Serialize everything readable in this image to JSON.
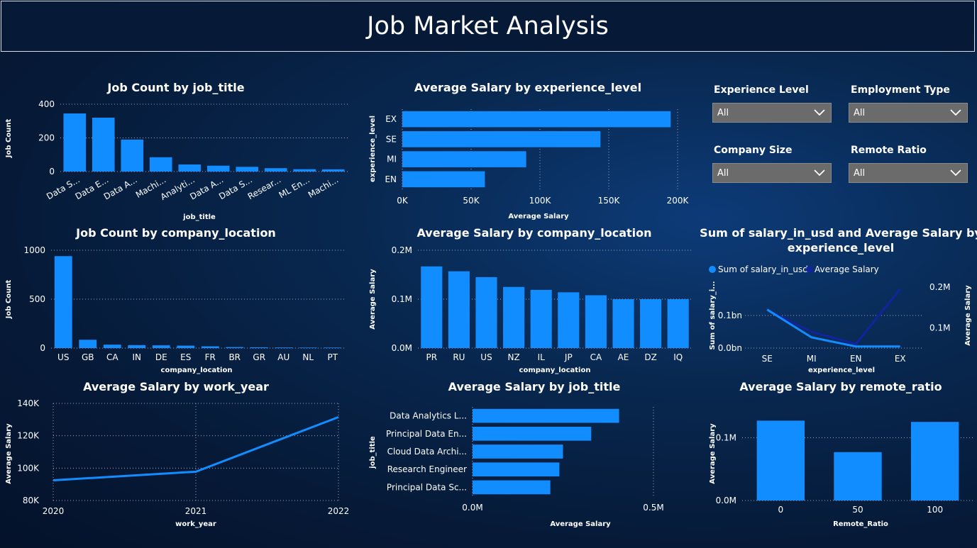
{
  "header": {
    "title": "Job Market Analysis"
  },
  "colors": {
    "bar": "#118dff",
    "line_avg": "#12239e",
    "line_sum": "#118dff",
    "background": "#061a38"
  },
  "filters": [
    {
      "label": "Experience Level",
      "value": "All"
    },
    {
      "label": "Employment Type",
      "value": "All"
    },
    {
      "label": "Company Size",
      "value": "All"
    },
    {
      "label": "Remote Ratio",
      "value": "All"
    }
  ],
  "chart_data": [
    {
      "id": "job_count_by_title",
      "type": "bar",
      "title": "Job Count by job_title",
      "xlabel": "job_title",
      "ylabel": "Job Count",
      "categories": [
        "Data S...",
        "Data E...",
        "Data A...",
        "Machi...",
        "Analyti...",
        "Data A...",
        "Data S...",
        "Resear...",
        "ML En...",
        "Machi..."
      ],
      "values": [
        345,
        320,
        190,
        85,
        42,
        35,
        28,
        20,
        14,
        13
      ],
      "ylim": [
        0,
        400
      ],
      "yticks": [
        0,
        200,
        400
      ],
      "ytick_labels": [
        "0",
        "200",
        "400"
      ]
    },
    {
      "id": "avg_salary_by_experience",
      "type": "bar",
      "orientation": "horizontal",
      "title": "Average Salary by experience_level",
      "xlabel": "Average Salary",
      "ylabel": "experience_level",
      "categories": [
        "EX",
        "SE",
        "MI",
        "EN"
      ],
      "values": [
        195000,
        144000,
        90000,
        60000
      ],
      "xlim": [
        0,
        200000
      ],
      "xticks": [
        0,
        50000,
        100000,
        150000,
        200000
      ],
      "xtick_labels": [
        "0K",
        "50K",
        "100K",
        "150K",
        "200K"
      ]
    },
    {
      "id": "job_count_by_location",
      "type": "bar",
      "title": "Job Count by company_location",
      "xlabel": "company_location",
      "ylabel": "Job Count",
      "categories": [
        "US",
        "GB",
        "CA",
        "IN",
        "DE",
        "ES",
        "FR",
        "BR",
        "GR",
        "AU",
        "NL",
        "PT"
      ],
      "values": [
        940,
        85,
        35,
        30,
        28,
        25,
        18,
        10,
        8,
        6,
        5,
        5
      ],
      "ylim": [
        0,
        1000
      ],
      "yticks": [
        0,
        500,
        1000
      ],
      "ytick_labels": [
        "0",
        "500",
        "1000"
      ]
    },
    {
      "id": "avg_salary_by_location",
      "type": "bar",
      "title": "Average Salary by company_location",
      "xlabel": "company_location",
      "ylabel": "Average Salary",
      "categories": [
        "PR",
        "RU",
        "US",
        "NZ",
        "IL",
        "JP",
        "CA",
        "AE",
        "DZ",
        "IQ"
      ],
      "values": [
        167000,
        157000,
        145000,
        125000,
        119000,
        114000,
        108000,
        100000,
        100000,
        100000
      ],
      "ylim": [
        0,
        200000
      ],
      "yticks": [
        0,
        100000,
        200000
      ],
      "ytick_labels": [
        "0.0M",
        "0.1M",
        "0.2M"
      ]
    },
    {
      "id": "sum_and_avg_by_experience",
      "type": "line",
      "title": "Sum of salary_in_usd and Average Salary by experience_level",
      "title_lines": [
        "Sum of salary_in_usd and Average Salary by",
        "experience_level"
      ],
      "xlabel": "experience_level",
      "ylabel": "Sum of salary_i...",
      "y2label": "Average Salary",
      "categories": [
        "SE",
        "MI",
        "EN",
        "EX"
      ],
      "series": [
        {
          "name": "Sum of salary_in_usd",
          "axis": "left",
          "values": [
            118000000,
            33000000,
            5000000,
            5000000
          ]
        },
        {
          "name": "Average Salary",
          "axis": "right",
          "values": [
            144000,
            90000,
            60000,
            195000
          ]
        }
      ],
      "ylim": [
        0,
        200000000
      ],
      "yticks": [
        0,
        100000000
      ],
      "ytick_labels": [
        "0.0bn",
        "0.1bn"
      ],
      "y2lim": [
        50000,
        210000
      ],
      "y2ticks": [
        100000,
        200000
      ],
      "y2tick_labels": [
        "0.1M",
        "0.2M"
      ]
    },
    {
      "id": "avg_salary_by_year",
      "type": "line",
      "title": "Average Salary by work_year",
      "xlabel": "work_year",
      "ylabel": "Average Salary",
      "categories": [
        "2020",
        "2021",
        "2022"
      ],
      "values": [
        92500,
        97800,
        131500
      ],
      "ylim": [
        80000,
        140000
      ],
      "yticks": [
        80000,
        100000,
        120000,
        140000
      ],
      "ytick_labels": [
        "80K",
        "100K",
        "120K",
        "140K"
      ]
    },
    {
      "id": "avg_salary_by_job_title",
      "type": "bar",
      "orientation": "horizontal",
      "title": "Average Salary by job_title",
      "xlabel": "Average Salary",
      "ylabel": "job_title",
      "categories": [
        "Data Analytics L...",
        "Principal Data En...",
        "Cloud Data Archi...",
        "Research Engineer",
        "Principal Data Sc..."
      ],
      "values": [
        405000,
        328000,
        250000,
        240000,
        215000
      ],
      "xlim": [
        0,
        500000
      ],
      "xticks": [
        0,
        500000
      ],
      "xtick_labels": [
        "0.0M",
        "0.5M"
      ]
    },
    {
      "id": "avg_salary_by_remote",
      "type": "bar",
      "title": "Average Salary by remote_ratio",
      "xlabel": "Remote_Ratio",
      "ylabel": "Average Salary",
      "categories": [
        "0",
        "50",
        "100"
      ],
      "values": [
        127000,
        77000,
        125000
      ],
      "ylim": [
        0,
        150000
      ],
      "yticks": [
        0,
        100000
      ],
      "ytick_labels": [
        "0.0M",
        "0.1M"
      ]
    }
  ]
}
